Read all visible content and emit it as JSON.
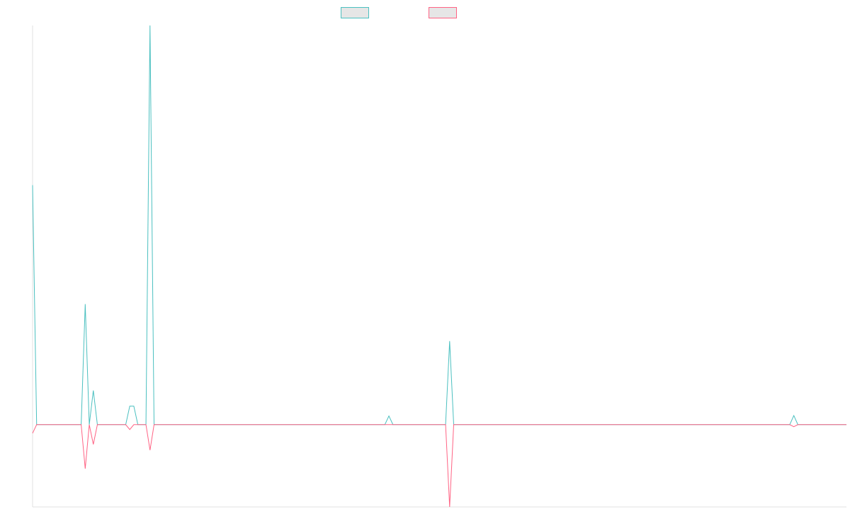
{
  "chart_data": {
    "type": "line",
    "categories": [
      null,
      null,
      null,
      null,
      null,
      null,
      null,
      null,
      null,
      null,
      null,
      null,
      null,
      null,
      null,
      null,
      null,
      null,
      null,
      null,
      null,
      null,
      null,
      null,
      null,
      null,
      null,
      null,
      null,
      null,
      null,
      null,
      null,
      null,
      null,
      null,
      null,
      null,
      null,
      null,
      null,
      null,
      null,
      null,
      null,
      null,
      null,
      null,
      null,
      null,
      null,
      null,
      null,
      null,
      null,
      null,
      null,
      null,
      null,
      null,
      null,
      null,
      null,
      null,
      null,
      null,
      null,
      null,
      null,
      null,
      null,
      null,
      null,
      null,
      null,
      null,
      null,
      null,
      null,
      null,
      null,
      null,
      null,
      null,
      null,
      null,
      null,
      null,
      null,
      null,
      null,
      null,
      null,
      null,
      null,
      null,
      null,
      null,
      null,
      null,
      null,
      null,
      null,
      null,
      null,
      null,
      null,
      null,
      null,
      null,
      null,
      null,
      null,
      null,
      null,
      null,
      null,
      null,
      null,
      null,
      null,
      null,
      null,
      null,
      null,
      null,
      null,
      null,
      null,
      null,
      null,
      null,
      null,
      null,
      null,
      null,
      null,
      null,
      null,
      null,
      null,
      null,
      null,
      null,
      null,
      null,
      null,
      null,
      null,
      null,
      null,
      null,
      null,
      null,
      null,
      null,
      null,
      null,
      null,
      null,
      null,
      null,
      null,
      null,
      null,
      null,
      null,
      null,
      null,
      null,
      null,
      null,
      null,
      null,
      null,
      null,
      null,
      null,
      null,
      null,
      null,
      null,
      null,
      null,
      null,
      null,
      null,
      null,
      null,
      null,
      null,
      null,
      null,
      null,
      null,
      null,
      null,
      null,
      null,
      null,
      null,
      null
    ],
    "series": [
      {
        "color": "#4bc0c0",
        "values": [
          58.2,
          0,
          0,
          0,
          0,
          0,
          0,
          0,
          0,
          0,
          0,
          0,
          0,
          29.3,
          0,
          8.3,
          0,
          0,
          0,
          0,
          0,
          0,
          0,
          0,
          4.5,
          4.5,
          0,
          0,
          0,
          97,
          0,
          0,
          0,
          0,
          0,
          0,
          0,
          0,
          0,
          0,
          0,
          0,
          0,
          0,
          0,
          0,
          0,
          0,
          0,
          0,
          0,
          0,
          0,
          0,
          0,
          0,
          0,
          0,
          0,
          0,
          0,
          0,
          0,
          0,
          0,
          0,
          0,
          0,
          0,
          0,
          0,
          0,
          0,
          0,
          0,
          0,
          0,
          0,
          0,
          0,
          0,
          0,
          0,
          0,
          0,
          0,
          0,
          0,
          2.1,
          0,
          0,
          0,
          0,
          0,
          0,
          0,
          0,
          0,
          0,
          0,
          0,
          0,
          0,
          20.3,
          0,
          0,
          0,
          0,
          0,
          0,
          0,
          0,
          0,
          0,
          0,
          0,
          0,
          0,
          0,
          0,
          0,
          0,
          0,
          0,
          0,
          0,
          0,
          0,
          0,
          0,
          0,
          0,
          0,
          0,
          0,
          0,
          0,
          0,
          0,
          0,
          0,
          0,
          0,
          0,
          0,
          0,
          0,
          0,
          0,
          0,
          0,
          0,
          0,
          0,
          0,
          0,
          0,
          0,
          0,
          0,
          0,
          0,
          0,
          0,
          0,
          0,
          0,
          0,
          0,
          0,
          0,
          0,
          0,
          0,
          0,
          0,
          0,
          0,
          0,
          0,
          0,
          0,
          0,
          0,
          0,
          0,
          0,
          0,
          2.2,
          0,
          0,
          0,
          0,
          0,
          0,
          0,
          0,
          0,
          0,
          0,
          0,
          0
        ]
      },
      {
        "color": "#ff6384",
        "values": [
          -2.1,
          0,
          0,
          0,
          0,
          0,
          0,
          0,
          0,
          0,
          0,
          0,
          0,
          -10.7,
          0,
          -4.8,
          0,
          0,
          0,
          0,
          0,
          0,
          0,
          0,
          -1.2,
          0,
          0,
          0,
          0,
          -6.2,
          0,
          0,
          0,
          0,
          0,
          0,
          0,
          0,
          0,
          0,
          0,
          0,
          0,
          0,
          0,
          0,
          0,
          0,
          0,
          0,
          0,
          0,
          0,
          0,
          0,
          0,
          0,
          0,
          0,
          0,
          0,
          0,
          0,
          0,
          0,
          0,
          0,
          0,
          0,
          0,
          0,
          0,
          0,
          0,
          0,
          0,
          0,
          0,
          0,
          0,
          0,
          0,
          0,
          0,
          0,
          0,
          0,
          0,
          0,
          0,
          0,
          0,
          0,
          0,
          0,
          0,
          0,
          0,
          0,
          0,
          0,
          0,
          0,
          -20,
          0,
          0,
          0,
          0,
          0,
          0,
          0,
          0,
          0,
          0,
          0,
          0,
          0,
          0,
          0,
          0,
          0,
          0,
          0,
          0,
          0,
          0,
          0,
          0,
          0,
          0,
          0,
          0,
          0,
          0,
          0,
          0,
          0,
          0,
          0,
          0,
          0,
          0,
          0,
          0,
          0,
          0,
          0,
          0,
          0,
          0,
          0,
          0,
          0,
          0,
          0,
          0,
          0,
          0,
          0,
          0,
          0,
          0,
          0,
          0,
          0,
          0,
          0,
          0,
          0,
          0,
          0,
          0,
          0,
          0,
          0,
          0,
          0,
          0,
          0,
          0,
          0,
          0,
          0,
          0,
          0,
          0,
          0,
          0,
          -0.5,
          0,
          0,
          0,
          0,
          0,
          0,
          0,
          0,
          0,
          0,
          0,
          0,
          0
        ]
      }
    ],
    "ylim": [
      -20,
      97
    ],
    "legend": "top"
  }
}
